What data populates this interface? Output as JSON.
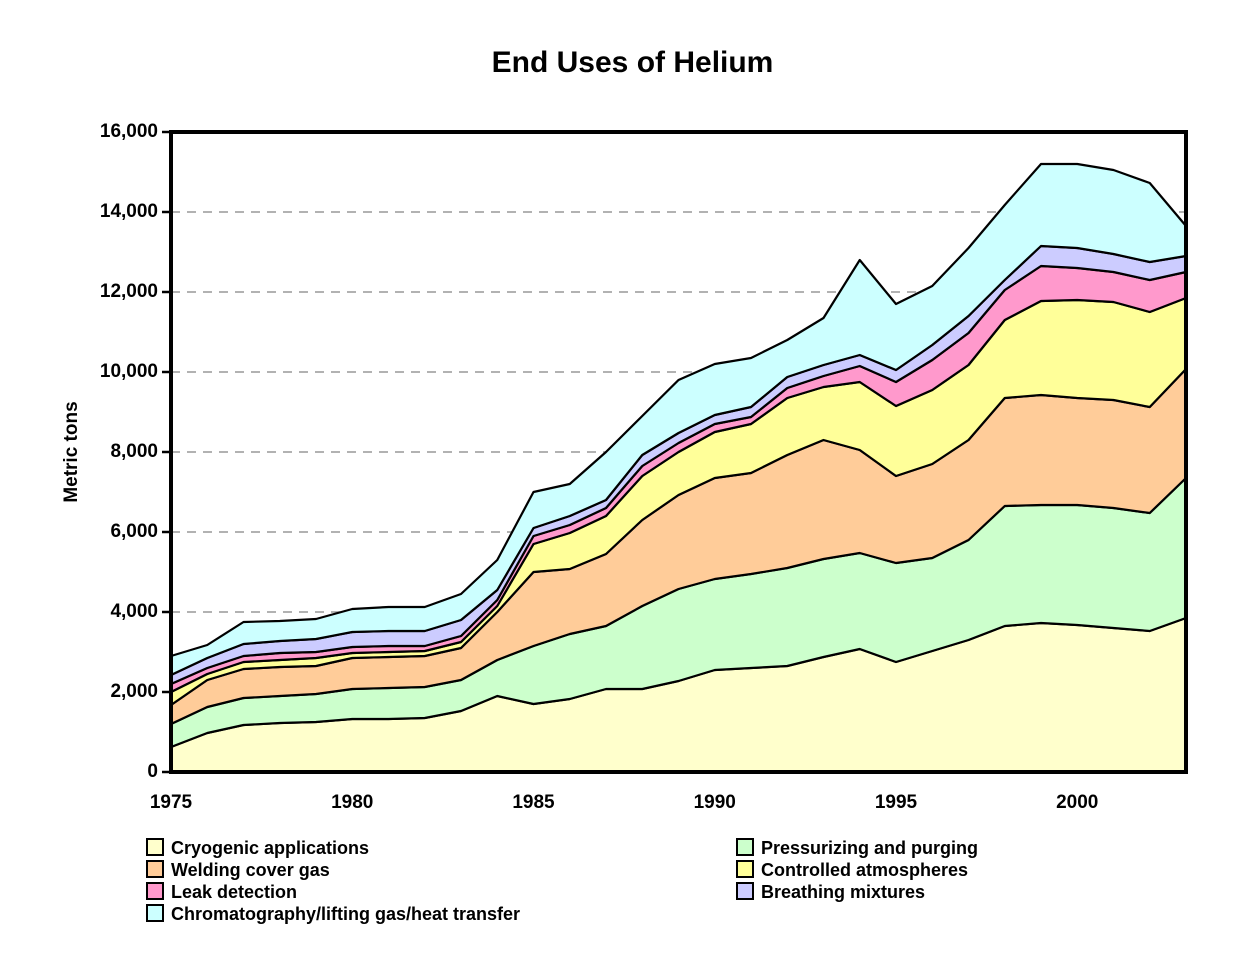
{
  "title": "End Uses of Helium",
  "y_axis": {
    "label": "Metric tons",
    "tick_labels": [
      "0",
      "2,000",
      "4,000",
      "6,000",
      "8,000",
      "10,000",
      "12,000",
      "14,000",
      "16,000"
    ],
    "tick_values": [
      0,
      2000,
      4000,
      6000,
      8000,
      10000,
      12000,
      14000,
      16000
    ]
  },
  "x_axis": {
    "tick_labels": [
      "1975",
      "1980",
      "1985",
      "1990",
      "1995",
      "2000"
    ],
    "tick_values": [
      1975,
      1980,
      1985,
      1990,
      1995,
      2000
    ]
  },
  "legend": {
    "columns": [
      {
        "items": [
          {
            "label": "Cryogenic applications",
            "color": "#FFFFCC"
          },
          {
            "label": "Welding cover gas",
            "color": "#FFCC99"
          },
          {
            "label": "Leak detection",
            "color": "#FF99CC"
          },
          {
            "label": "Chromatography/lifting gas/heat transfer",
            "color": "#CCFFFF"
          }
        ]
      },
      {
        "items": [
          {
            "label": "Pressurizing and purging",
            "color": "#CCFFCC"
          },
          {
            "label": "Controlled atmospheres",
            "color": "#FFFF99"
          },
          {
            "label": "Breathing mixtures",
            "color": "#CCCCFF"
          }
        ]
      }
    ]
  },
  "chart_data": {
    "type": "area",
    "stacked": true,
    "title": "End Uses of Helium",
    "xlabel": "",
    "ylabel": "Metric tons",
    "ylim": [
      0,
      16000
    ],
    "grid": "horizontal-dashed",
    "grid_color": "#999999",
    "outline_color": "#000000",
    "legend_position": "bottom",
    "x": [
      1975,
      1976,
      1977,
      1978,
      1979,
      1980,
      1981,
      1982,
      1983,
      1984,
      1985,
      1986,
      1987,
      1988,
      1989,
      1990,
      1991,
      1992,
      1993,
      1994,
      1995,
      1996,
      1997,
      1998,
      1999,
      2000,
      2001,
      2002,
      2003
    ],
    "series": [
      {
        "name": "Cryogenic applications",
        "color": "#FFFFCC",
        "values": [
          625,
          975,
          1175,
          1225,
          1250,
          1325,
          1325,
          1350,
          1525,
          1900,
          1700,
          1825,
          2075,
          2075,
          2275,
          2550,
          2600,
          2650,
          2875,
          3075,
          2750,
          3025,
          3300,
          3650,
          3725,
          3675,
          3600,
          3525,
          3850
        ]
      },
      {
        "name": "Pressurizing and purging",
        "color": "#CCFFCC",
        "values": [
          575,
          650,
          675,
          675,
          700,
          750,
          775,
          775,
          775,
          900,
          1450,
          1625,
          1575,
          2075,
          2300,
          2275,
          2350,
          2450,
          2450,
          2400,
          2475,
          2325,
          2500,
          3000,
          2950,
          3000,
          3000,
          2950,
          3500
        ]
      },
      {
        "name": "Welding cover gas",
        "color": "#FFCC99",
        "values": [
          475,
          675,
          725,
          725,
          700,
          775,
          775,
          775,
          800,
          1200,
          1850,
          1625,
          1800,
          2150,
          2350,
          2525,
          2525,
          2825,
          2975,
          2575,
          2175,
          2350,
          2500,
          2700,
          2750,
          2675,
          2700,
          2650,
          2725
        ]
      },
      {
        "name": "Controlled atmospheres",
        "color": "#FFFF99",
        "values": [
          325,
          150,
          175,
          175,
          200,
          125,
          125,
          125,
          150,
          150,
          700,
          900,
          950,
          1100,
          1075,
          1150,
          1225,
          1425,
          1325,
          1700,
          1750,
          1850,
          1875,
          1950,
          2350,
          2450,
          2450,
          2375,
          1775
        ]
      },
      {
        "name": "Leak detection",
        "color": "#FF99CC",
        "values": [
          200,
          150,
          150,
          175,
          150,
          150,
          150,
          125,
          150,
          150,
          200,
          200,
          200,
          250,
          225,
          200,
          175,
          250,
          275,
          400,
          600,
          750,
          800,
          750,
          875,
          800,
          750,
          800,
          650
        ]
      },
      {
        "name": "Breathing mixtures",
        "color": "#CCCCFF",
        "values": [
          225,
          250,
          300,
          300,
          325,
          375,
          375,
          375,
          400,
          250,
          200,
          225,
          200,
          275,
          250,
          225,
          250,
          275,
          275,
          275,
          300,
          375,
          425,
          250,
          500,
          500,
          450,
          450,
          400
        ]
      },
      {
        "name": "Chromatography/lifting gas/heat transfer",
        "color": "#CCFFFF",
        "values": [
          475,
          325,
          550,
          500,
          500,
          575,
          600,
          600,
          650,
          750,
          900,
          800,
          1200,
          975,
          1325,
          1275,
          1225,
          925,
          1175,
          2375,
          1650,
          1475,
          1700,
          1875,
          2050,
          2100,
          2100,
          1975,
          750
        ]
      }
    ]
  }
}
